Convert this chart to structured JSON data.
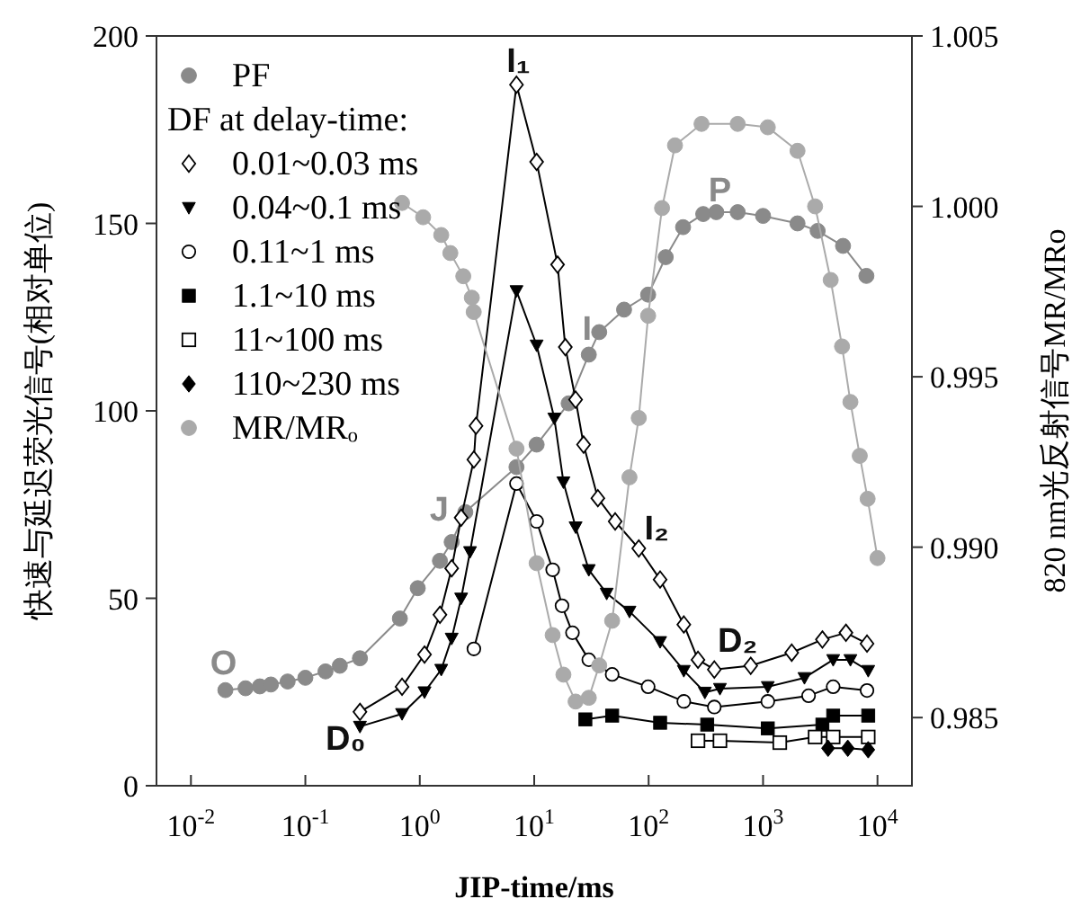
{
  "chart_data": {
    "type": "line",
    "xlabel": "JIP-time/ms",
    "ylabel": "快速与延迟荧光信号(相对单位)",
    "y2label": "820 nm光反射信号MR/MRo",
    "legend_title": "DF at delay-time:",
    "legend": "top left",
    "log": "x",
    "grid": false,
    "xlim": [
      0.005,
      20000
    ],
    "xticks": [
      {
        "value": 0.01,
        "label": "10$^{-2}$"
      },
      {
        "value": 0.1,
        "label": "10$^{-1}$"
      },
      {
        "value": 1,
        "label": "10$^{0}$"
      },
      {
        "value": 10,
        "label": "10$^{1}$"
      },
      {
        "value": 100,
        "label": "10$^{2}$"
      },
      {
        "value": 1000,
        "label": "10$^{3}$"
      },
      {
        "value": 10000,
        "label": "10$^{4}$"
      }
    ],
    "ylim": [
      0,
      200
    ],
    "yticks": [
      0,
      50,
      100,
      150,
      200
    ],
    "y2lim": [
      0.983,
      1.005
    ],
    "y2ticks": [
      0.985,
      {
        "value": 0.99,
        "label": "0.990"
      },
      0.995,
      {
        "value": 1,
        "label": "1.000"
      },
      1.005
    ],
    "series": [
      {
        "name": "PF",
        "color": "#8a8a8a",
        "marker": "circle",
        "x": [
          0.02,
          0.03,
          0.04,
          0.05,
          0.07,
          0.1,
          0.15,
          0.2,
          0.3,
          0.67,
          0.96,
          1.5,
          1.9,
          2.5,
          7,
          10.5,
          20,
          30,
          37,
          61,
          99,
          141,
          200,
          300,
          390,
          600,
          1000,
          2000,
          3000,
          5000,
          8000
        ],
        "values": [
          25.5,
          26,
          26.5,
          27,
          27.8,
          28.8,
          30.5,
          32,
          34,
          44.6,
          52.7,
          60,
          65,
          73,
          85,
          91,
          102,
          115,
          121,
          127,
          131,
          141,
          149,
          152.5,
          153,
          153,
          152,
          150,
          148,
          144,
          136
        ]
      },
      {
        "name": "0.01~0.03 ms",
        "color": "#000000",
        "marker": "diamond-open",
        "x": [
          0.3,
          0.7,
          1.1,
          1.5,
          1.9,
          2.3,
          2.97,
          3.1,
          7,
          10.5,
          16,
          18.7,
          23,
          27,
          36,
          51,
          82,
          126,
          203,
          270,
          375,
          780,
          1780,
          3300,
          5300,
          8100
        ],
        "values": [
          19.7,
          26.4,
          35,
          45.6,
          58,
          71.5,
          87,
          96,
          187,
          166.4,
          139,
          117,
          103,
          91,
          76.7,
          70.5,
          63.3,
          55,
          43,
          33.6,
          31,
          32,
          35.5,
          39,
          40.8,
          37.9
        ]
      },
      {
        "name": "0.04~0.1 ms",
        "color": "#000000",
        "marker": "triangle-down",
        "x": [
          0.3,
          0.7,
          1.1,
          1.54,
          1.9,
          2.3,
          2.75,
          7,
          10.5,
          15,
          18,
          23,
          30,
          43,
          68,
          126,
          203,
          310,
          420,
          1100,
          2300,
          4100,
          5800,
          8300
        ],
        "values": [
          15.8,
          19.2,
          25,
          31,
          39.3,
          50,
          62.4,
          132,
          117.5,
          98,
          81,
          69,
          57.6,
          51.3,
          46.5,
          38.4,
          30.7,
          24.9,
          25.9,
          26.4,
          28.8,
          33.6,
          33.6,
          30.7
        ]
      },
      {
        "name": "0.11~1 ms",
        "color": "#000000",
        "marker": "circle-open",
        "x": [
          2.97,
          7,
          10.5,
          14.5,
          17.5,
          21.6,
          30,
          48,
          99,
          203,
          375,
          1100,
          2500,
          4100,
          8100
        ],
        "values": [
          36.5,
          80.6,
          70.5,
          57.6,
          48,
          40.8,
          33.6,
          29.7,
          26.4,
          22.5,
          21,
          22.5,
          24,
          26.4,
          25.4
        ]
      },
      {
        "name": "1.1~10 ms",
        "color": "#000000",
        "marker": "square",
        "x": [
          28,
          48,
          126,
          325,
          1100,
          3300,
          4100,
          8300
        ],
        "values": [
          17.7,
          18.7,
          16.8,
          16.3,
          15.3,
          16.3,
          18.7,
          18.7
        ]
      },
      {
        "name": "11~100 ms",
        "color": "#000000",
        "marker": "square-open",
        "x": [
          270,
          420,
          1400,
          2850,
          4100,
          8300
        ],
        "values": [
          12,
          12,
          11.5,
          13,
          13,
          13
        ]
      },
      {
        "name": "110~230 ms",
        "color": "#000000",
        "marker": "diamond",
        "x": [
          3700,
          5500,
          8300
        ],
        "values": [
          10,
          10,
          9.6
        ]
      },
      {
        "name": "MR/MRₒ",
        "color": "#aaaaaa",
        "marker": "circle",
        "axis": "y2",
        "x": [
          0.7,
          1.07,
          1.54,
          1.85,
          2.4,
          2.85,
          2.96,
          7,
          10.5,
          14.5,
          18,
          23,
          30,
          37,
          48,
          68,
          82,
          99,
          131,
          170,
          290,
          600,
          1100,
          2000,
          2850,
          3900,
          4900,
          5800,
          7000,
          8200,
          10000
        ],
        "values": [
          1.0001,
          0.99968,
          0.99916,
          0.99863,
          0.99795,
          0.99732,
          0.9969,
          0.99289,
          0.98953,
          0.98742,
          0.98626,
          0.98547,
          0.98558,
          0.98653,
          0.98784,
          0.99205,
          0.99379,
          0.99679,
          0.99995,
          1.00179,
          1.00242,
          1.00242,
          1.00232,
          1.00163,
          1.0,
          0.99784,
          0.99589,
          0.99426,
          0.99268,
          0.99142,
          0.98968
        ]
      }
    ],
    "annotations": [
      {
        "text": "O",
        "x": 0.02,
        "y": 25.5
      },
      {
        "text": "J",
        "x": 1.9,
        "y": 65
      },
      {
        "text": "I",
        "x": 30,
        "y": 115
      },
      {
        "text": "P",
        "x": 390,
        "y": 153
      },
      {
        "text": "I₁",
        "x": 7,
        "y": 187
      },
      {
        "text": "I₂",
        "x": 82,
        "y": 63.3
      },
      {
        "text": "D₀",
        "x": 0.3,
        "y": 15.8
      },
      {
        "text": "D₂",
        "x": 375,
        "y": 31
      }
    ]
  }
}
